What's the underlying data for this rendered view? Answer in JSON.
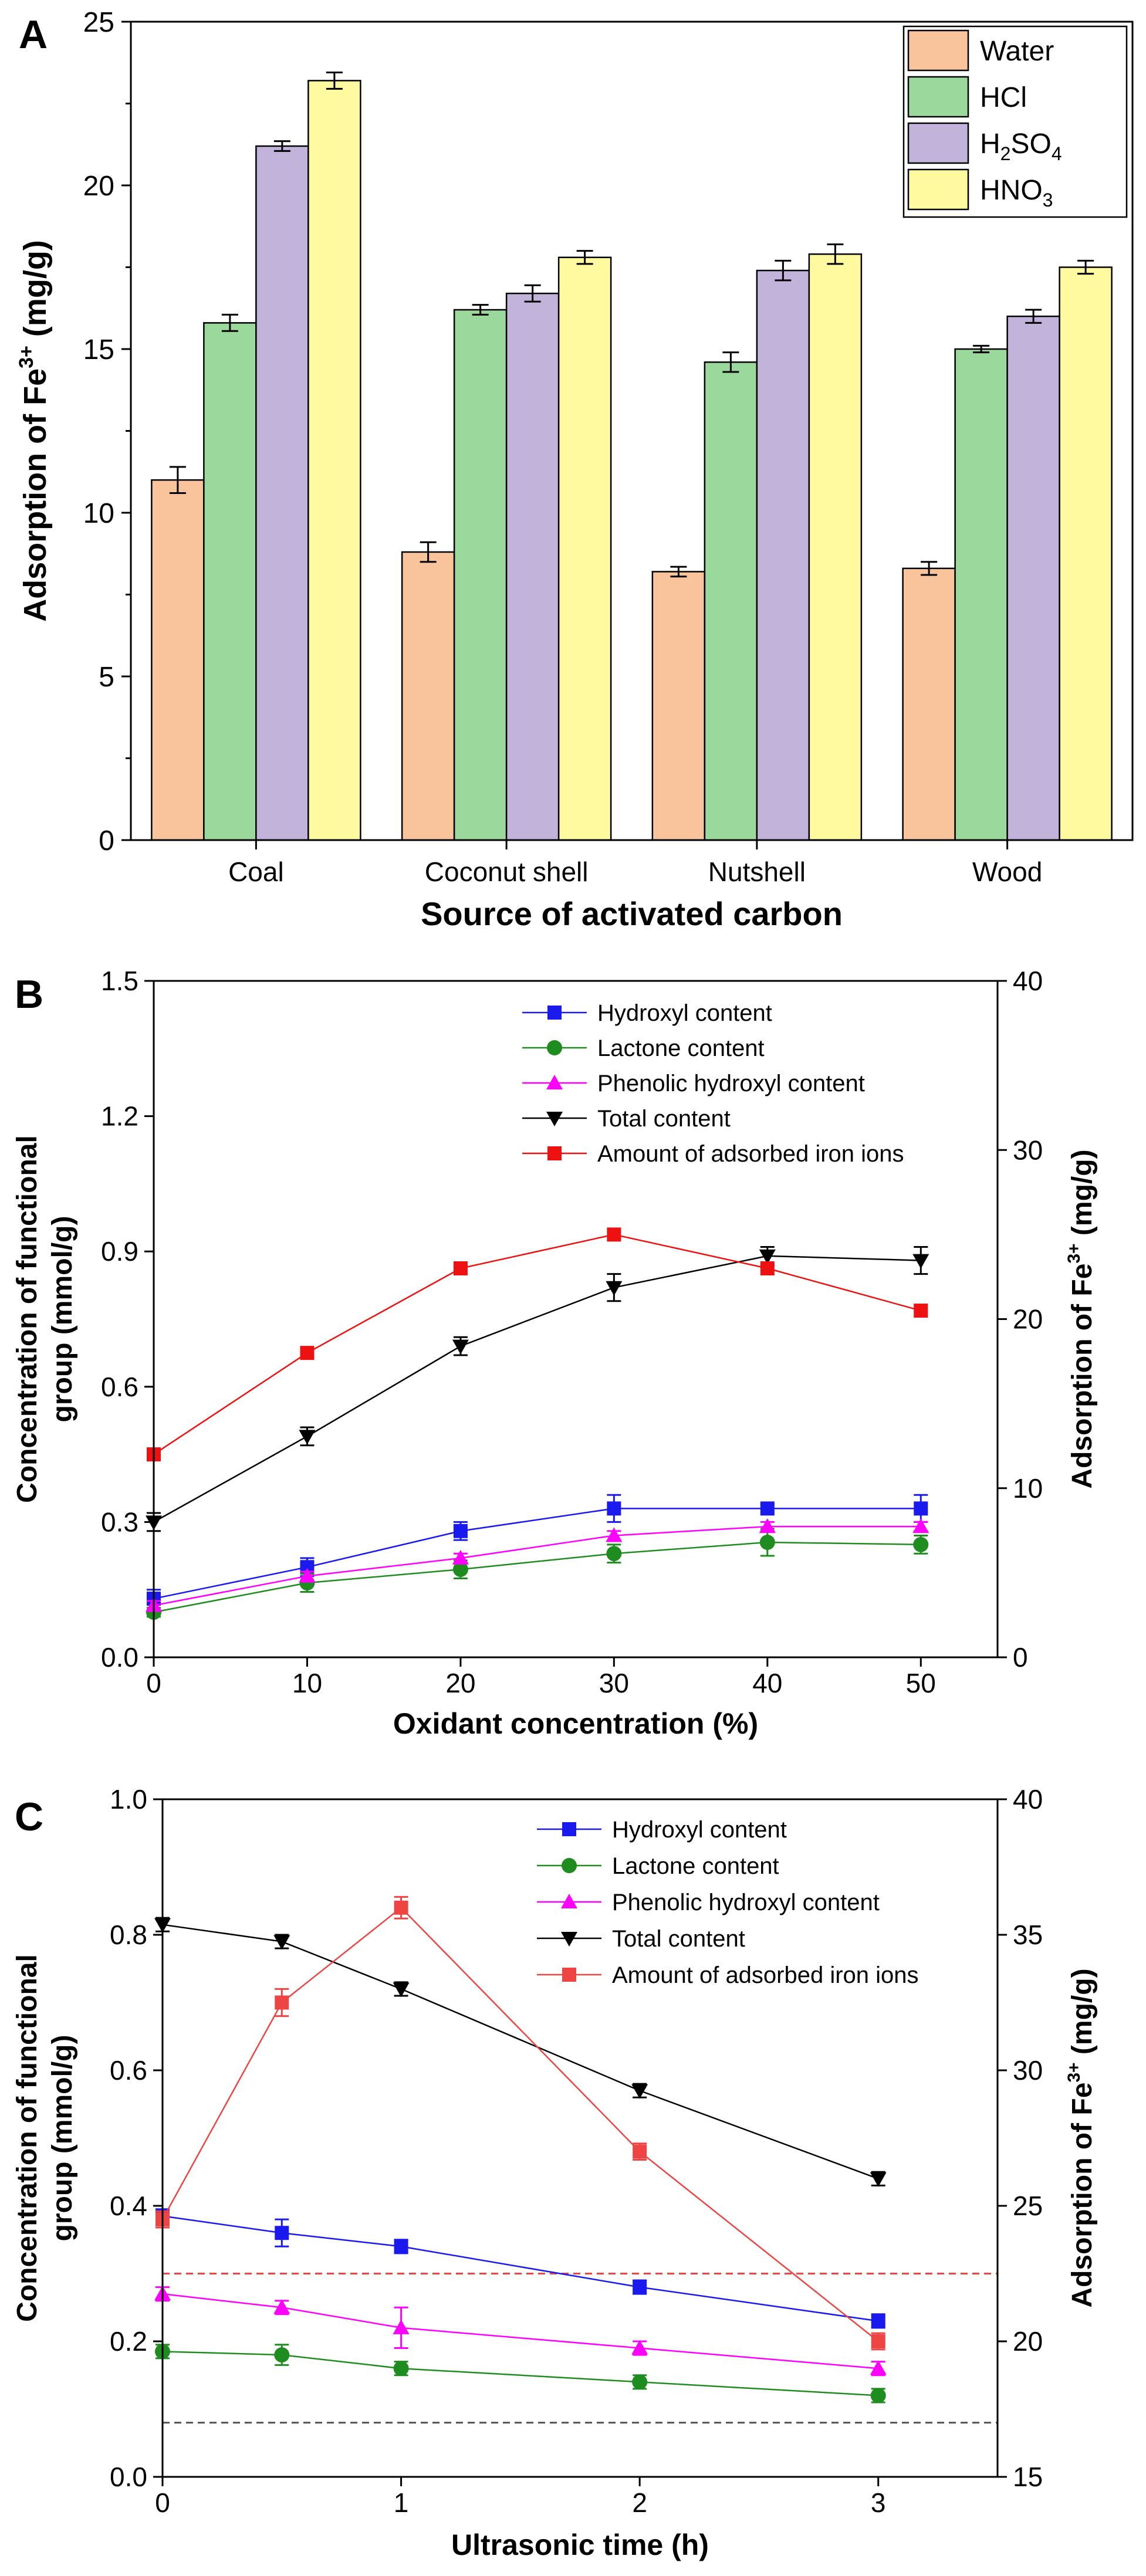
{
  "chart_data": [
    {
      "panel": "A",
      "type": "bar",
      "title": "",
      "xlabel": "Source of activated carbon",
      "ylabel": "Adsorption of Fe",
      "ylabel_sup": "3+",
      "ylabel_unit": " (mg/g)",
      "ylim": [
        0,
        25
      ],
      "yticks": [
        0,
        5,
        10,
        15,
        20,
        25
      ],
      "categories": [
        "Coal",
        "Coconut shell",
        "Nutshell",
        "Wood"
      ],
      "legend_position": "top-right",
      "series": [
        {
          "name": "Water",
          "color": "#f9c49b",
          "values": [
            11.0,
            8.8,
            8.2,
            8.3
          ],
          "errors": [
            0.4,
            0.3,
            0.15,
            0.2
          ]
        },
        {
          "name": "HCl",
          "color": "#9ad89c",
          "values": [
            15.8,
            16.2,
            14.6,
            15.0
          ],
          "errors": [
            0.25,
            0.15,
            0.3,
            0.1
          ]
        },
        {
          "name": "H2SO4",
          "label_base": "H",
          "label_sub1": "2",
          "label_mid": "SO",
          "label_sub2": "4",
          "color": "#c2b3db",
          "values": [
            21.2,
            16.7,
            17.4,
            16.0
          ],
          "errors": [
            0.15,
            0.25,
            0.3,
            0.2
          ]
        },
        {
          "name": "HNO3",
          "label_base": "HNO",
          "label_sub1": "3",
          "color": "#fffaa0",
          "values": [
            23.2,
            17.8,
            17.9,
            17.5
          ],
          "errors": [
            0.25,
            0.2,
            0.3,
            0.2
          ]
        }
      ]
    },
    {
      "panel": "B",
      "type": "line",
      "xlabel": "Oxidant concentration (%)",
      "ylabel_line1": "Concentration of functional",
      "ylabel_line2": "group (mmol/g)",
      "y2label": "Adsorption of Fe",
      "y2label_sup": "3+",
      "y2label_unit": " (mg/g)",
      "xlim": [
        0,
        55
      ],
      "xticks": [
        0,
        10,
        20,
        30,
        40,
        50
      ],
      "ylim": [
        0,
        1.5
      ],
      "yticks": [
        "0.0",
        "0.3",
        "0.6",
        "0.9",
        "1.2",
        "1.5"
      ],
      "y2lim": [
        0,
        40
      ],
      "y2ticks": [
        0,
        10,
        20,
        30,
        40
      ],
      "legend_position": "top-right",
      "x": [
        0,
        10,
        20,
        30,
        40,
        50
      ],
      "series": [
        {
          "name": "Hydroxyl content",
          "axis": "left",
          "color": "#1a1aee",
          "marker": "square",
          "values": [
            0.13,
            0.2,
            0.28,
            0.33,
            0.33,
            0.33
          ],
          "errors": [
            0.02,
            0.02,
            0.02,
            0.03,
            0.01,
            0.03
          ]
        },
        {
          "name": "Lactone content",
          "axis": "left",
          "color": "#1e8c1e",
          "marker": "circle",
          "values": [
            0.1,
            0.165,
            0.195,
            0.23,
            0.255,
            0.25
          ],
          "errors": [
            0.01,
            0.02,
            0.02,
            0.02,
            0.03,
            0.02
          ]
        },
        {
          "name": "Phenolic hydroxyl content",
          "axis": "left",
          "color": "#ff00ff",
          "marker": "triangle-up",
          "values": [
            0.115,
            0.18,
            0.22,
            0.27,
            0.29,
            0.29
          ],
          "errors": [
            0.01,
            0.01,
            0.01,
            0.01,
            0.01,
            0.01
          ]
        },
        {
          "name": "Total content",
          "axis": "left",
          "color": "#000000",
          "marker": "triangle-down",
          "values": [
            0.3,
            0.49,
            0.69,
            0.82,
            0.89,
            0.88
          ],
          "errors": [
            0.02,
            0.02,
            0.02,
            0.03,
            0.02,
            0.03
          ]
        },
        {
          "name": "Amount of adsorbed iron ions",
          "axis": "right",
          "color": "#ee1111",
          "marker": "square",
          "values": [
            12.0,
            18.0,
            23.0,
            25.0,
            23.0,
            20.5
          ],
          "errors": [
            0,
            0,
            0,
            0,
            0,
            0
          ]
        }
      ]
    },
    {
      "panel": "C",
      "type": "line",
      "xlabel": "Ultrasonic time (h)",
      "ylabel_line1": "Concentration of functional",
      "ylabel_line2": "group (mmol/g)",
      "y2label": "Adsorption of Fe",
      "y2label_sup": "3+",
      "y2label_unit": " (mg/g)",
      "xlim": [
        0,
        3.5
      ],
      "xticks": [
        0,
        1,
        2,
        3
      ],
      "ylim": [
        0,
        1.0
      ],
      "yticks": [
        "0.0",
        "0.2",
        "0.4",
        "0.6",
        "0.8",
        "1.0"
      ],
      "y2lim": [
        15,
        40
      ],
      "y2ticks": [
        15,
        20,
        25,
        30,
        35,
        40
      ],
      "legend_position": "top-right",
      "x": [
        0,
        0.5,
        1,
        2,
        3
      ],
      "series": [
        {
          "name": "Hydroxyl  content",
          "axis": "left",
          "color": "#1a1aee",
          "marker": "square",
          "values": [
            0.385,
            0.36,
            0.34,
            0.28,
            0.23
          ],
          "errors": [
            0.01,
            0.02,
            0.01,
            0.01,
            0.01
          ]
        },
        {
          "name": "Lactone content",
          "axis": "left",
          "color": "#1e8c1e",
          "marker": "circle",
          "values": [
            0.185,
            0.18,
            0.16,
            0.14,
            0.12
          ],
          "errors": [
            0.01,
            0.015,
            0.01,
            0.01,
            0.01
          ]
        },
        {
          "name": "Phenolic hydroxyl content",
          "axis": "left",
          "color": "#ff00ff",
          "marker": "triangle-up",
          "values": [
            0.27,
            0.25,
            0.22,
            0.19,
            0.16
          ],
          "errors": [
            0.01,
            0.01,
            0.03,
            0.01,
            0.01
          ]
        },
        {
          "name": "Total content",
          "axis": "left",
          "color": "#000000",
          "marker": "triangle-down",
          "values": [
            0.815,
            0.79,
            0.72,
            0.57,
            0.44
          ],
          "errors": [
            0.01,
            0.01,
            0.01,
            0.01,
            0.01
          ]
        },
        {
          "name": "Amount of adsorbed iron ions",
          "axis": "right",
          "color": "#ee4444",
          "marker": "square",
          "values": [
            24.5,
            32.5,
            36.0,
            27.0,
            20.0
          ],
          "errors": [
            0.3,
            0.5,
            0.4,
            0.3,
            0.3
          ]
        }
      ],
      "reference_lines": [
        {
          "axis": "left",
          "value": 0.3,
          "color": "#ee4444",
          "style": "dashed"
        },
        {
          "axis": "left",
          "value": 0.08,
          "color": "#555555",
          "style": "dashed"
        }
      ]
    }
  ],
  "panel_labels": [
    "A",
    "B",
    "C"
  ]
}
